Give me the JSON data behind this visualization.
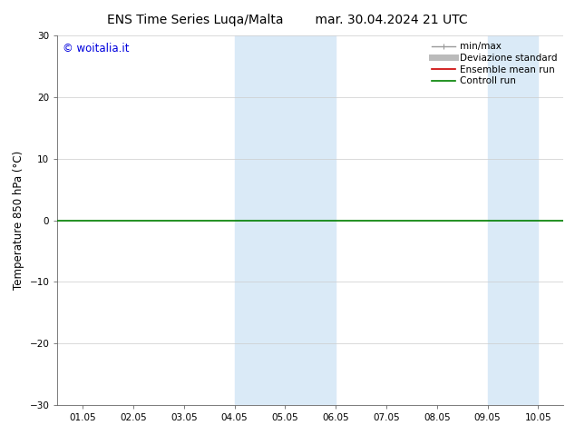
{
  "title_left": "ENS Time Series Luqa/Malta",
  "title_right": "mar. 30.04.2024 21 UTC",
  "ylabel": "Temperature 850 hPa (°C)",
  "ylim": [
    -30,
    30
  ],
  "yticks": [
    -30,
    -20,
    -10,
    0,
    10,
    20,
    30
  ],
  "xtick_labels": [
    "01.05",
    "02.05",
    "03.05",
    "04.05",
    "05.05",
    "06.05",
    "07.05",
    "08.05",
    "09.05",
    "10.05"
  ],
  "xlim": [
    0,
    9
  ],
  "watermark": "© woitalia.it",
  "watermark_color": "#0000dd",
  "bg_color": "#ffffff",
  "shaded_bands": [
    {
      "xmin": 3.0,
      "xmax": 4.0,
      "color": "#daeaf7"
    },
    {
      "xmin": 4.0,
      "xmax": 5.0,
      "color": "#daeaf7"
    },
    {
      "xmin": 8.0,
      "xmax": 9.0,
      "color": "#daeaf7"
    }
  ],
  "hline_y": 0,
  "hline_color": "#008000",
  "hline_lw": 1.2,
  "legend_entries": [
    {
      "label": "min/max",
      "color": "#999999",
      "lw": 1.0,
      "style": "caps"
    },
    {
      "label": "Deviazione standard",
      "color": "#bbbbbb",
      "lw": 5,
      "style": "solid"
    },
    {
      "label": "Ensemble mean run",
      "color": "#cc0000",
      "lw": 1.2,
      "style": "solid"
    },
    {
      "label": "Controll run",
      "color": "#008000",
      "lw": 1.2,
      "style": "solid"
    }
  ],
  "grid_color": "#cccccc",
  "tick_fontsize": 7.5,
  "title_fontsize": 10,
  "label_fontsize": 8.5,
  "legend_fontsize": 7.5
}
